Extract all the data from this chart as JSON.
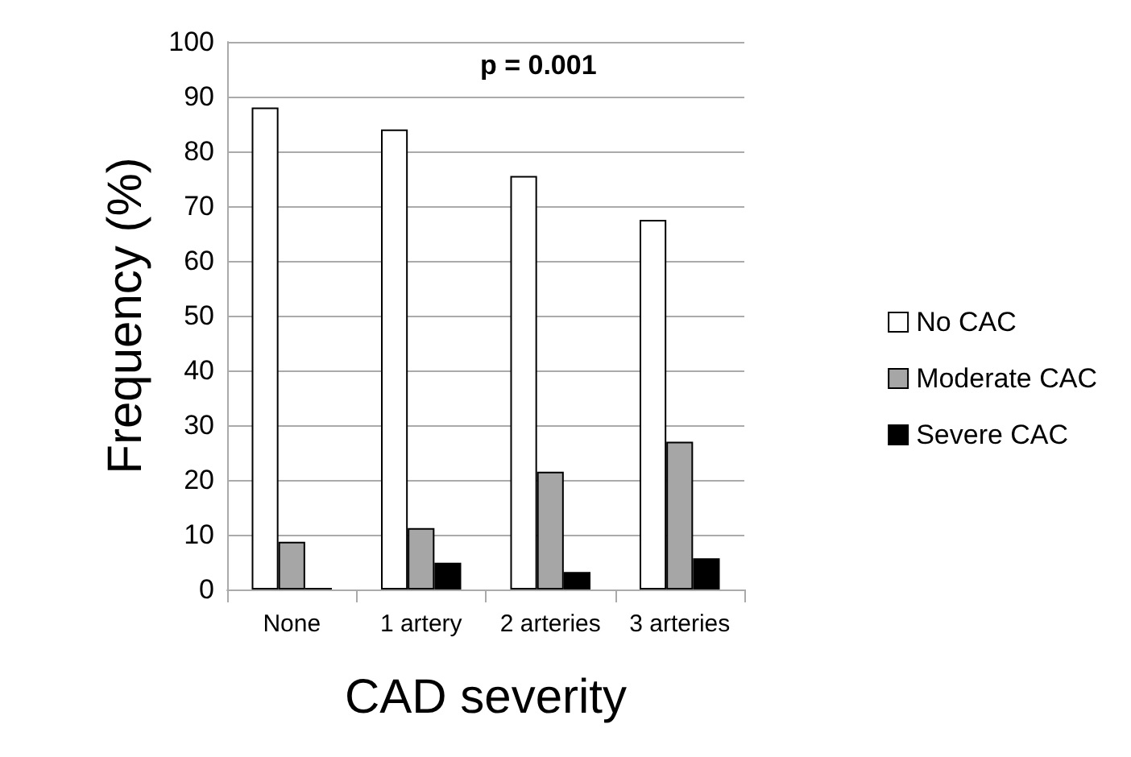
{
  "chart_data": {
    "type": "bar",
    "xlabel": "CAD severity",
    "ylabel": "Frequency (%)",
    "categories": [
      "None",
      "1 artery",
      "2 arteries",
      "3 arteries"
    ],
    "series": [
      {
        "name": "No CAC",
        "color": "#ffffff",
        "values": [
          88,
          84,
          75.5,
          67.5
        ]
      },
      {
        "name": "Moderate CAC",
        "color": "#a6a6a6",
        "values": [
          8.7,
          11.2,
          21.5,
          27
        ]
      },
      {
        "name": "Severe CAC",
        "color": "#000000",
        "values": [
          0.3,
          4.9,
          3.2,
          5.7
        ]
      }
    ],
    "ylim": [
      0,
      100
    ],
    "yticks": [
      0,
      10,
      20,
      30,
      40,
      50,
      60,
      70,
      80,
      90,
      100
    ],
    "grid": "y",
    "legend": "right",
    "annotations": [
      "p = 0.001"
    ]
  }
}
